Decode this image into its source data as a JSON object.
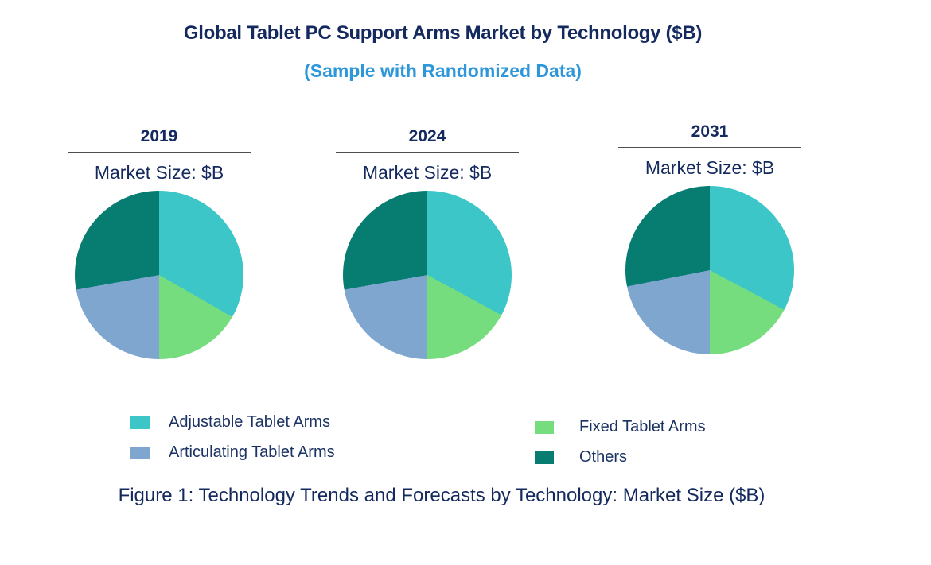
{
  "chart_data": {
    "type": "pie",
    "title": "Global Tablet PC Support Arms Market by Technology ($B)",
    "subtitle": "(Sample with Randomized Data)",
    "caption": "Figure 1: Technology Trends and Forecasts by Technology: Market Size ($B)",
    "legend_position": "bottom",
    "slice_order_clockwise_from_top": [
      "Adjustable Tablet Arms",
      "Fixed Tablet Arms",
      "Articulating Tablet Arms",
      "Others"
    ],
    "pies": [
      {
        "year": "2019",
        "unit_label": "Market Size: $B",
        "slices": [
          {
            "label": "Adjustable Tablet Arms",
            "value": 33.3,
            "color": "#3CC6C8"
          },
          {
            "label": "Fixed Tablet Arms",
            "value": 16.7,
            "color": "#76DD7E"
          },
          {
            "label": "Articulating Tablet Arms",
            "value": 22.2,
            "color": "#7EA6CE"
          },
          {
            "label": "Others",
            "value": 27.8,
            "color": "#077D72"
          }
        ]
      },
      {
        "year": "2024",
        "unit_label": "Market Size: $B",
        "slices": [
          {
            "label": "Adjustable Tablet Arms",
            "value": 32.9,
            "color": "#3CC6C8"
          },
          {
            "label": "Fixed Tablet Arms",
            "value": 17.1,
            "color": "#76DD7E"
          },
          {
            "label": "Articulating Tablet Arms",
            "value": 22.2,
            "color": "#7EA6CE"
          },
          {
            "label": "Others",
            "value": 27.8,
            "color": "#077D72"
          }
        ]
      },
      {
        "year": "2031",
        "unit_label": "Market Size: $B",
        "slices": [
          {
            "label": "Adjustable Tablet Arms",
            "value": 32.8,
            "color": "#3CC6C8"
          },
          {
            "label": "Fixed Tablet Arms",
            "value": 17.2,
            "color": "#76DD7E"
          },
          {
            "label": "Articulating Tablet Arms",
            "value": 21.9,
            "color": "#7EA6CE"
          },
          {
            "label": "Others",
            "value": 28.1,
            "color": "#077D72"
          }
        ]
      }
    ],
    "legend": {
      "left": [
        {
          "label": "Adjustable Tablet Arms",
          "color": "#3CC6C8"
        },
        {
          "label": "Articulating Tablet Arms",
          "color": "#7EA6CE"
        }
      ],
      "right": [
        {
          "label": "Fixed Tablet Arms",
          "color": "#76DD7E"
        },
        {
          "label": "Others",
          "color": "#077D72"
        }
      ]
    }
  }
}
